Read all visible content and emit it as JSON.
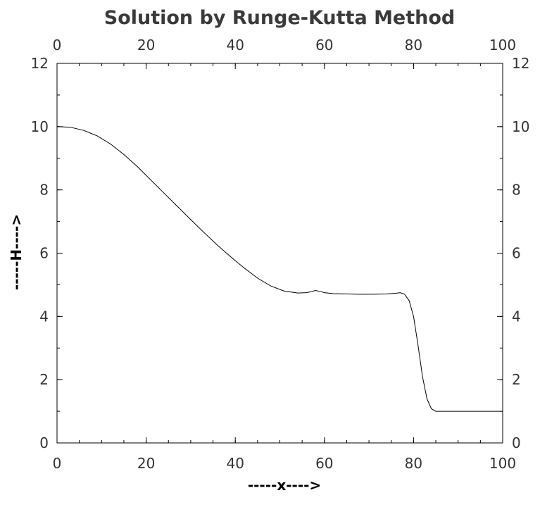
{
  "chart_data": {
    "type": "line",
    "title": "Solution by Runge-Kutta Method",
    "xlabel": "-----x---->",
    "ylabel": "-----H---->",
    "xlim": [
      0,
      100
    ],
    "ylim": [
      0,
      12
    ],
    "x_major_ticks": [
      0,
      20,
      40,
      60,
      80,
      100
    ],
    "y_major_ticks": [
      0,
      2,
      4,
      6,
      8,
      10,
      12
    ],
    "x_minor_step": 5,
    "y_minor_step": 1,
    "grid": false,
    "mirror_axes": "top-right",
    "line_color": "#000000",
    "series": [
      {
        "x": [
          0,
          3,
          6,
          9,
          12,
          15,
          18,
          21,
          24,
          27,
          30,
          33,
          36,
          39,
          42,
          45,
          48,
          51,
          54,
          56,
          57,
          58,
          59,
          60,
          62,
          65,
          68,
          71,
          74,
          76,
          77,
          78,
          79,
          80,
          81,
          82,
          83,
          84,
          85,
          88,
          91,
          94,
          97,
          100
        ],
        "y": [
          10.0,
          9.98,
          9.88,
          9.71,
          9.45,
          9.12,
          8.74,
          8.32,
          7.9,
          7.48,
          7.06,
          6.65,
          6.25,
          5.88,
          5.53,
          5.21,
          4.96,
          4.8,
          4.74,
          4.75,
          4.78,
          4.82,
          4.79,
          4.75,
          4.72,
          4.71,
          4.7,
          4.7,
          4.71,
          4.73,
          4.75,
          4.7,
          4.5,
          4.0,
          3.1,
          2.1,
          1.4,
          1.08,
          1.0,
          1.0,
          1.0,
          1.0,
          1.0,
          1.0
        ]
      }
    ]
  }
}
